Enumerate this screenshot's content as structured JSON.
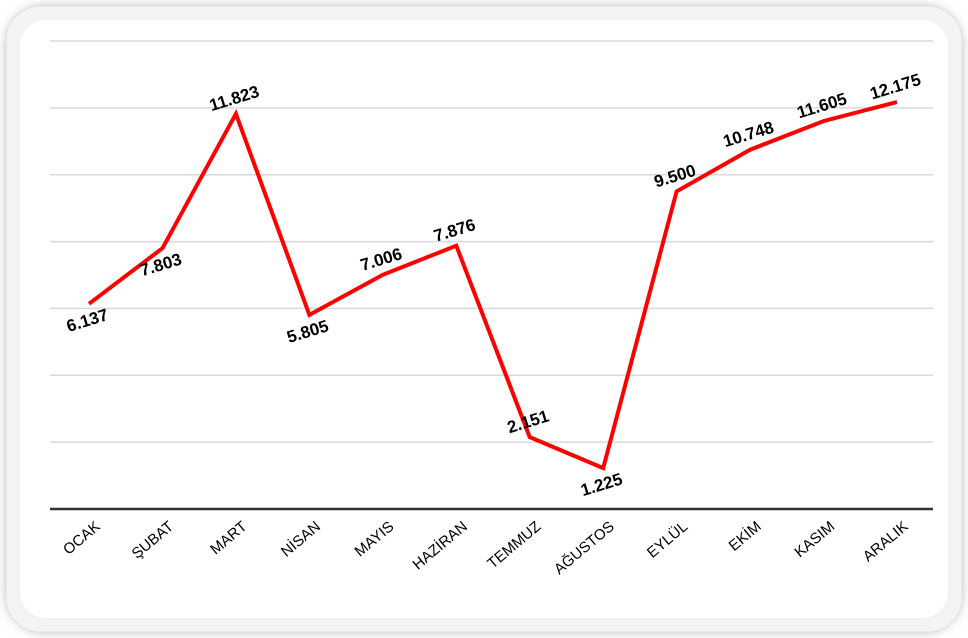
{
  "chart_data": {
    "type": "line",
    "title": "",
    "xlabel": "",
    "ylabel": "",
    "grid": true,
    "ylim": [
      0,
      14
    ],
    "categories": [
      "OCAK",
      "ŞUBAT",
      "MART",
      "NİSAN",
      "MAYIS",
      "HAZİRAN",
      "TEMMUZ",
      "AĞUSTOS",
      "EYLÜL",
      "EKİM",
      "KASIM",
      "ARALIK"
    ],
    "series": [
      {
        "values": [
          6.137,
          7.803,
          11.823,
          5.805,
          7.006,
          7.876,
          2.151,
          1.225,
          9.5,
          10.748,
          11.605,
          12.175
        ],
        "labels": [
          "6.137",
          "7.803",
          "11.823",
          "5.805",
          "7.006",
          "7.876",
          "2.151",
          "1.225",
          "9.500",
          "10.748",
          "11.605",
          "12.175"
        ],
        "color": "#ff0000"
      }
    ]
  },
  "colors": {
    "line": "#ff0000",
    "grid": "#d9d9d9",
    "axis": "#333333",
    "text": "#000000",
    "frame_border": "#f2f2f2"
  }
}
